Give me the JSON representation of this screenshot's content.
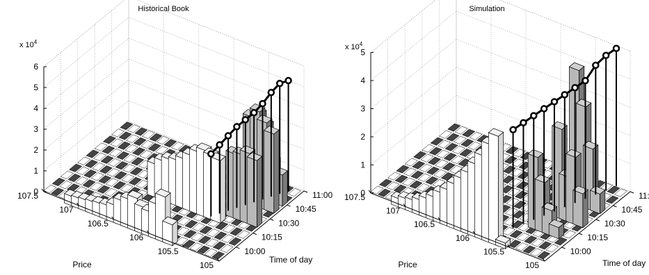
{
  "chart_data": [
    {
      "type": "bar3d",
      "title": "Historical Book",
      "xlabel": "Price",
      "ylabel": "Time of day",
      "zlabel": "",
      "z_multiplier": "x 10^4",
      "price_ticks": [
        "107.5",
        "107",
        "106.5",
        "106",
        "105.5",
        "105"
      ],
      "time_ticks": [
        "10:00",
        "10:15",
        "10:30",
        "10:45",
        "11:00"
      ],
      "z_ticks": [
        "0",
        "1",
        "2",
        "3",
        "4",
        "5",
        "6"
      ],
      "zlim": [
        0,
        6
      ],
      "grid": true,
      "bars_white": [
        {
          "price": 107.1,
          "t": 0.0,
          "h": 0.45
        },
        {
          "price": 107.0,
          "t": 0.0,
          "h": 0.5
        },
        {
          "price": 106.9,
          "t": 0.0,
          "h": 0.55
        },
        {
          "price": 106.8,
          "t": 0.0,
          "h": 0.6
        },
        {
          "price": 106.7,
          "t": 0.0,
          "h": 0.65
        },
        {
          "price": 106.6,
          "t": 0.0,
          "h": 0.7
        },
        {
          "price": 106.5,
          "t": 0.0,
          "h": 0.85
        },
        {
          "price": 106.4,
          "t": 0.0,
          "h": 1.2
        },
        {
          "price": 106.3,
          "t": 0.0,
          "h": 1.4
        },
        {
          "price": 106.2,
          "t": 0.0,
          "h": 1.6
        },
        {
          "price": 106.1,
          "t": 0.0,
          "h": 1.3
        },
        {
          "price": 106.0,
          "t": 0.0,
          "h": 1.2
        },
        {
          "price": 105.9,
          "t": 0.0,
          "h": 1.7
        },
        {
          "price": 105.8,
          "t": 0.0,
          "h": 2.2
        },
        {
          "price": 105.7,
          "t": 0.0,
          "h": 1.0
        },
        {
          "price": 106.4,
          "t": 2.0,
          "h": 1.6
        },
        {
          "price": 106.3,
          "t": 2.0,
          "h": 1.9
        },
        {
          "price": 106.2,
          "t": 2.0,
          "h": 2.1
        },
        {
          "price": 106.1,
          "t": 2.0,
          "h": 2.2
        },
        {
          "price": 106.0,
          "t": 2.0,
          "h": 2.4
        },
        {
          "price": 105.9,
          "t": 2.0,
          "h": 2.7
        },
        {
          "price": 105.8,
          "t": 2.0,
          "h": 3.0
        },
        {
          "price": 105.7,
          "t": 2.0,
          "h": 3.2
        },
        {
          "price": 105.6,
          "t": 2.0,
          "h": 3.1
        },
        {
          "price": 105.5,
          "t": 2.0,
          "h": 3.0
        }
      ],
      "bars_gray": [
        {
          "price": 105.4,
          "t": 2.5,
          "h": 3.1
        },
        {
          "price": 105.3,
          "t": 2.5,
          "h": 3.2
        },
        {
          "price": 105.2,
          "t": 2.5,
          "h": 3.4
        },
        {
          "price": 105.1,
          "t": 2.5,
          "h": 3.2
        },
        {
          "price": 105.4,
          "t": 3.5,
          "h": 4.2
        },
        {
          "price": 105.3,
          "t": 3.5,
          "h": 4.6
        },
        {
          "price": 105.2,
          "t": 3.5,
          "h": 4.2
        },
        {
          "price": 105.1,
          "t": 3.5,
          "h": 3.8
        },
        {
          "price": 105.4,
          "t": 4.0,
          "h": 4.0
        },
        {
          "price": 105.3,
          "t": 4.0,
          "h": 3.6
        },
        {
          "price": 105.2,
          "t": 4.0,
          "h": 2.0
        },
        {
          "price": 105.1,
          "t": 4.0,
          "h": 1.5
        }
      ],
      "best_price_path": [
        {
          "price": 105.6,
          "t": 2.0,
          "h": 3.0
        },
        {
          "price": 105.55,
          "t": 2.3,
          "h": 3.3
        },
        {
          "price": 105.5,
          "t": 2.6,
          "h": 3.6
        },
        {
          "price": 105.45,
          "t": 2.9,
          "h": 3.9
        },
        {
          "price": 105.4,
          "t": 3.2,
          "h": 4.1
        },
        {
          "price": 105.35,
          "t": 3.5,
          "h": 4.3
        },
        {
          "price": 105.3,
          "t": 3.8,
          "h": 4.6
        },
        {
          "price": 105.25,
          "t": 4.1,
          "h": 5.0
        },
        {
          "price": 105.2,
          "t": 4.4,
          "h": 5.3
        },
        {
          "price": 105.15,
          "t": 4.7,
          "h": 5.3
        }
      ]
    },
    {
      "type": "bar3d",
      "title": "Simulation",
      "xlabel": "Price",
      "ylabel": "Time of day",
      "zlabel": "",
      "z_multiplier": "x 10^4",
      "price_ticks": [
        "107.5",
        "107",
        "106.5",
        "106",
        "105.5",
        "105"
      ],
      "time_ticks": [
        "10:00",
        "10:15",
        "10:30",
        "10:45",
        "11:00"
      ],
      "z_ticks": [
        "0",
        "1",
        "2",
        "3",
        "4",
        "5"
      ],
      "zlim": [
        0,
        5
      ],
      "grid": true,
      "bars_white": [
        {
          "price": 107.1,
          "t": 0.0,
          "h": 0.3
        },
        {
          "price": 107.0,
          "t": 0.0,
          "h": 0.4
        },
        {
          "price": 106.9,
          "t": 0.0,
          "h": 0.45
        },
        {
          "price": 106.8,
          "t": 0.0,
          "h": 0.55
        },
        {
          "price": 106.7,
          "t": 0.0,
          "h": 0.7
        },
        {
          "price": 106.6,
          "t": 0.0,
          "h": 0.85
        },
        {
          "price": 106.5,
          "t": 0.0,
          "h": 1.1
        },
        {
          "price": 106.4,
          "t": 0.0,
          "h": 1.3
        },
        {
          "price": 106.3,
          "t": 0.0,
          "h": 1.6
        },
        {
          "price": 106.2,
          "t": 0.0,
          "h": 1.9
        },
        {
          "price": 106.1,
          "t": 0.0,
          "h": 2.2
        },
        {
          "price": 106.0,
          "t": 0.0,
          "h": 2.6
        },
        {
          "price": 105.9,
          "t": 0.0,
          "h": 3.0
        },
        {
          "price": 105.8,
          "t": 0.0,
          "h": 3.5
        },
        {
          "price": 105.7,
          "t": 0.0,
          "h": 3.9
        },
        {
          "price": 105.6,
          "t": 0.0,
          "h": 0.2
        }
      ],
      "bars_gray": [
        {
          "price": 105.5,
          "t": 1.5,
          "h": 2.6
        },
        {
          "price": 105.4,
          "t": 1.5,
          "h": 1.8
        },
        {
          "price": 105.3,
          "t": 1.5,
          "h": 0.9
        },
        {
          "price": 105.2,
          "t": 1.5,
          "h": 0.4
        },
        {
          "price": 105.4,
          "t": 2.5,
          "h": 3.2
        },
        {
          "price": 105.3,
          "t": 2.5,
          "h": 1.6
        },
        {
          "price": 105.2,
          "t": 2.5,
          "h": 2.4
        },
        {
          "price": 105.1,
          "t": 2.5,
          "h": 1.2
        },
        {
          "price": 105.4,
          "t": 3.5,
          "h": 4.8
        },
        {
          "price": 105.3,
          "t": 3.5,
          "h": 3.6
        },
        {
          "price": 105.2,
          "t": 3.5,
          "h": 2.2
        },
        {
          "price": 105.1,
          "t": 3.5,
          "h": 0.7
        }
      ],
      "best_price_path": [
        {
          "price": 105.7,
          "t": 1.0,
          "h": 3.5
        },
        {
          "price": 105.65,
          "t": 1.4,
          "h": 3.6
        },
        {
          "price": 105.6,
          "t": 1.8,
          "h": 3.7
        },
        {
          "price": 105.55,
          "t": 2.2,
          "h": 3.8
        },
        {
          "price": 105.5,
          "t": 2.6,
          "h": 3.9
        },
        {
          "price": 105.45,
          "t": 3.0,
          "h": 4.0
        },
        {
          "price": 105.4,
          "t": 3.4,
          "h": 4.1
        },
        {
          "price": 105.35,
          "t": 3.8,
          "h": 4.2
        },
        {
          "price": 105.3,
          "t": 4.2,
          "h": 4.6
        },
        {
          "price": 105.25,
          "t": 4.6,
          "h": 4.8
        },
        {
          "price": 105.2,
          "t": 5.0,
          "h": 4.9
        }
      ]
    }
  ]
}
